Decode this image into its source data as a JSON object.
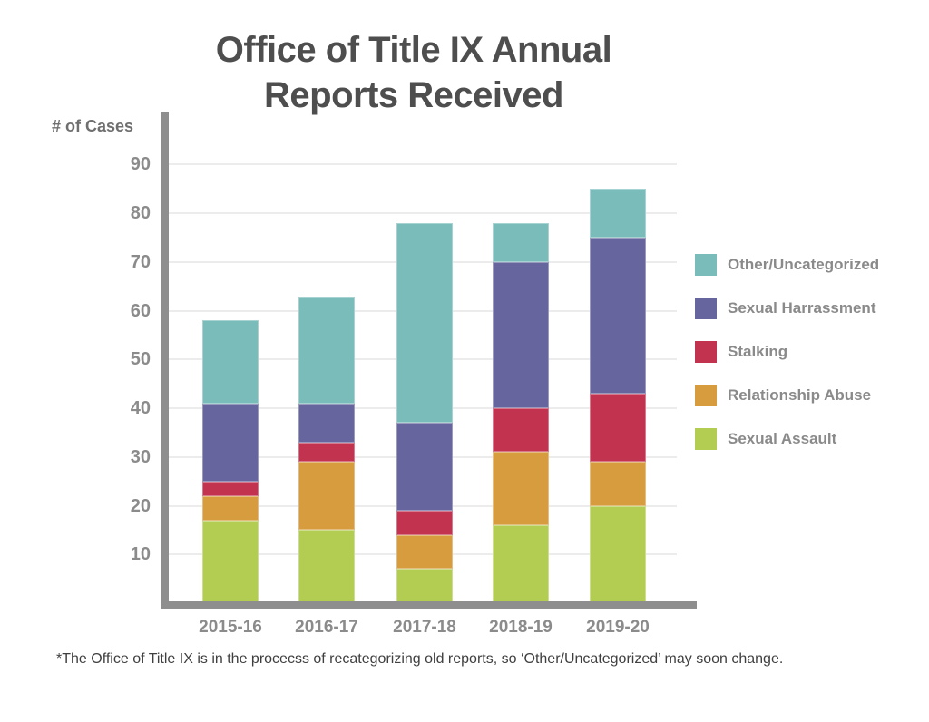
{
  "title": {
    "line1": "Office of Title IX Annual",
    "line2": "Reports Received"
  },
  "y_axis_label": "# of Cases",
  "footnote": "*The  Office of Title IX is in the procecss of recategorizing old reports, so ‘Other/Uncategorized’ may soon change.",
  "colors": {
    "teal": "#79bcba",
    "purple": "#66659d",
    "red": "#c23350",
    "orange": "#d69c3e",
    "green": "#b3cc52",
    "axis_gray": "#8e8e8e",
    "gridline_gray": "#ececec",
    "title_text": "#4e4e4e",
    "tick_text": "#8b8b8b",
    "legend_text": "#8a8a8a",
    "footnote_text": "#3f3f3f"
  },
  "chart_data": {
    "type": "bar",
    "stacked": true,
    "title": "Office of Title IX Annual Reports Received",
    "xlabel": "",
    "ylabel": "# of Cases",
    "categories": [
      "2015-16",
      "2016-17",
      "2017-18",
      "2018-19",
      "2019-20"
    ],
    "series": [
      {
        "name": "Sexual Assault",
        "color": "#b3cc52",
        "values": [
          17,
          15,
          7,
          16,
          20
        ]
      },
      {
        "name": "Relationship Abuse",
        "color": "#d69c3e",
        "values": [
          5,
          14,
          7,
          15,
          9
        ]
      },
      {
        "name": "Stalking",
        "color": "#c23350",
        "values": [
          3,
          4,
          5,
          9,
          14
        ]
      },
      {
        "name": "Sexual Harrassment",
        "color": "#66659d",
        "values": [
          16,
          8,
          18,
          30,
          32
        ]
      },
      {
        "name": "Other/Uncategorized",
        "color": "#79bcba",
        "values": [
          17,
          22,
          41,
          8,
          10
        ]
      }
    ],
    "totals": [
      58,
      63,
      78,
      78,
      85
    ],
    "y_ticks": [
      10,
      20,
      30,
      40,
      50,
      60,
      70,
      80,
      90
    ],
    "ylim": [
      0,
      95
    ],
    "grid": true,
    "legend_position": "right",
    "legend_order": [
      "Other/Uncategorized",
      "Sexual Harrassment",
      "Stalking",
      "Relationship Abuse",
      "Sexual Assault"
    ]
  }
}
